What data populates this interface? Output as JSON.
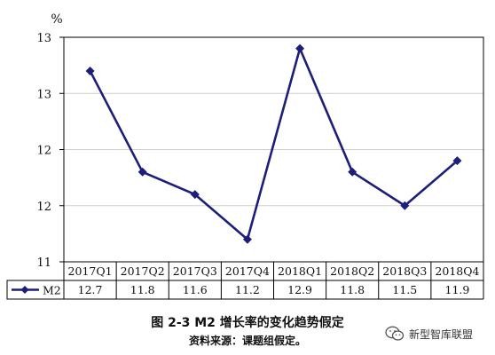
{
  "chart_data": {
    "type": "line",
    "ylabel": "%",
    "y_tick_labels": [
      "13",
      "13",
      "12",
      "12",
      "11"
    ],
    "ylim": [
      11,
      13
    ],
    "grid": true,
    "categories": [
      "2017Q1",
      "2017Q2",
      "2017Q3",
      "2017Q4",
      "2018Q1",
      "2018Q2",
      "2018Q3",
      "2018Q4"
    ],
    "series": [
      {
        "name": "M2",
        "values": [
          12.7,
          11.8,
          11.6,
          11.2,
          12.9,
          11.8,
          11.5,
          11.9
        ]
      }
    ],
    "legend": "data-table-left",
    "colors": {
      "series": "#1d1d7a",
      "grid": "#cfcfcf",
      "axis": "#000000"
    }
  },
  "caption": {
    "title": "图 2-3 M2 增长率的变化趋势假定",
    "source": "资料来源：课题组假定。"
  },
  "watermark": {
    "text": "新型智库联盟",
    "icon": "wechat-icon"
  }
}
